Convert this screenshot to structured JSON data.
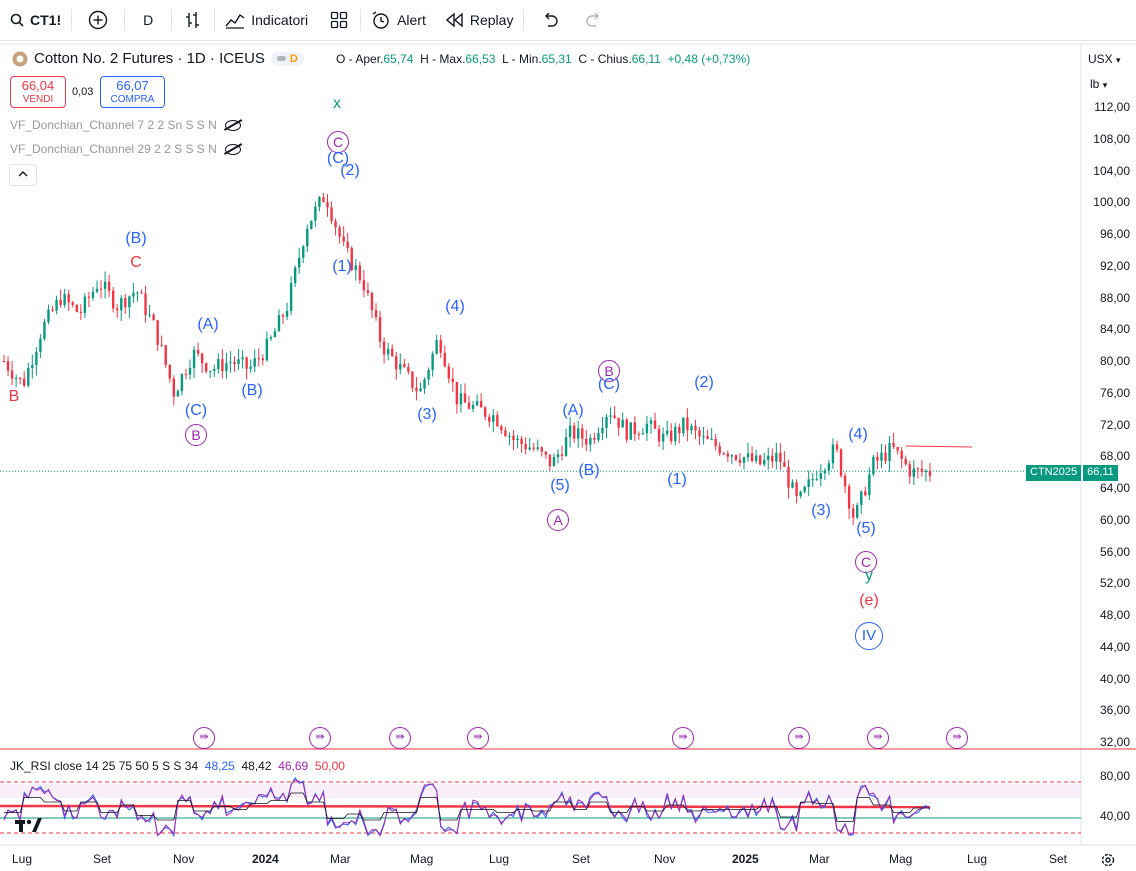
{
  "toolbar": {
    "symbol": "CT1!",
    "interval": "D",
    "indicators_label": "Indicatori",
    "alert_label": "Alert",
    "replay_label": "Replay"
  },
  "header": {
    "title": "Cotton No. 2 Futures · 1D · ICEUS",
    "pill": "D",
    "open_label": "O - Aper.",
    "open": "65,74",
    "high_label": "H - Max.",
    "high": "66,53",
    "low_label": "L - Min.",
    "low": "65,31",
    "close_label": "C - Chius.",
    "close": "66,11",
    "change": "+0,48 (+0,73%)"
  },
  "trade": {
    "sell_price": "66,04",
    "sell_label": "VENDI",
    "spread": "0,03",
    "buy_price": "66,07",
    "buy_label": "COMPRA"
  },
  "indicators": [
    "VF_Donchian_Channel 7 2 2 Sn S S N",
    "VF_Donchian_Channel 29 2 2 S S S N"
  ],
  "scale": {
    "currency": "USX",
    "unit": "lb"
  },
  "last_price": {
    "symbol": "CTN2025",
    "value": "66,11"
  },
  "rsi": {
    "label": "JK_RSI close 14 25 75 50 5 S S 34",
    "v1": "48,25",
    "v2": "48,42",
    "v3": "46,69",
    "v4": "50,00",
    "ticks": [
      "80,00",
      "40,00"
    ]
  },
  "chart_data": {
    "type": "candlestick",
    "y_ticks": [
      "112,00",
      "108,00",
      "104,00",
      "100,00",
      "96,00",
      "92,00",
      "88,00",
      "84,00",
      "80,00",
      "76,00",
      "72,00",
      "68,00",
      "64,00",
      "60,00",
      "56,00",
      "52,00",
      "48,00",
      "44,00",
      "40,00",
      "36,00",
      "32,00"
    ],
    "x_ticks": [
      "Lug",
      "Set",
      "Nov",
      "2024",
      "Mar",
      "Mag",
      "Lug",
      "Set",
      "Nov",
      "2025",
      "Mar",
      "Mag",
      "Lug",
      "Set"
    ],
    "price_path": [
      80,
      77,
      84,
      88,
      86,
      90,
      87,
      89,
      84,
      76,
      81,
      79,
      80,
      79,
      82,
      87,
      97,
      101,
      94,
      90,
      82,
      79,
      76,
      83,
      75,
      74,
      73,
      70,
      69,
      67,
      71,
      70,
      74,
      71,
      72,
      70,
      72,
      70,
      69,
      68,
      67,
      68,
      62,
      66,
      69,
      60,
      67,
      69,
      66,
      66
    ],
    "annotations": [
      {
        "t": "B",
        "c": "#f23645"
      },
      {
        "t": "(B)",
        "c": "#2962ff"
      },
      {
        "t": "C",
        "c": "#f23645"
      },
      {
        "t": "(A)",
        "c": "#2962ff"
      },
      {
        "t": "(C)",
        "c": "#2962ff"
      },
      {
        "t": "B",
        "c": "#9c27b0"
      },
      {
        "t": "(B)",
        "c": "#2962ff"
      },
      {
        "t": "x",
        "c": "#089981"
      },
      {
        "t": "C",
        "c": "#9c27b0"
      },
      {
        "t": "(C)",
        "c": "#2962ff"
      },
      {
        "t": "(2)",
        "c": "#2962ff"
      },
      {
        "t": "(1)",
        "c": "#2962ff"
      },
      {
        "t": "(4)",
        "c": "#2962ff"
      },
      {
        "t": "(3)",
        "c": "#2962ff"
      },
      {
        "t": "B",
        "c": "#9c27b0"
      },
      {
        "t": "(C)",
        "c": "#2962ff"
      },
      {
        "t": "(A)",
        "c": "#2962ff"
      },
      {
        "t": "(5)",
        "c": "#2962ff"
      },
      {
        "t": "(B)",
        "c": "#2962ff"
      },
      {
        "t": "A",
        "c": "#9c27b0"
      },
      {
        "t": "(2)",
        "c": "#2962ff"
      },
      {
        "t": "(1)",
        "c": "#2962ff"
      },
      {
        "t": "(4)",
        "c": "#2962ff"
      },
      {
        "t": "(3)",
        "c": "#2962ff"
      },
      {
        "t": "(5)",
        "c": "#2962ff"
      },
      {
        "t": "C",
        "c": "#9c27b0"
      },
      {
        "t": "y",
        "c": "#089981"
      },
      {
        "t": "(e)",
        "c": "#f23645"
      },
      {
        "t": "IV",
        "c": "#2962ff"
      }
    ]
  }
}
